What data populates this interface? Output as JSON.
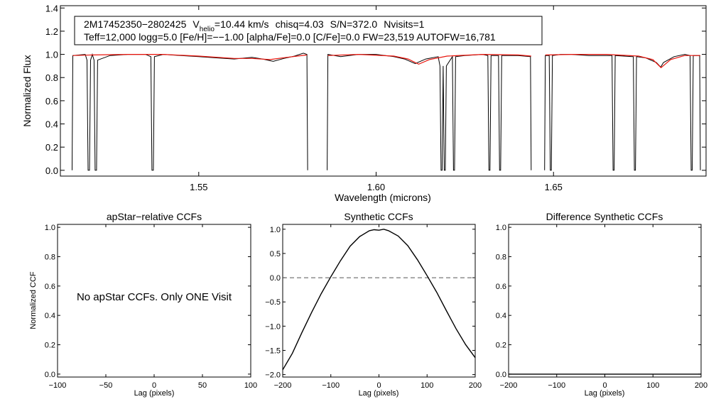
{
  "header": {
    "star_id": "2M17452350−2802425",
    "vhelio_prefix": "V",
    "vhelio_subscript": "helio",
    "vhelio_value": "=10.44 km/s",
    "chisq": "chisq=4.03",
    "snr": "S/N=372.0",
    "nvisits": "Nvisits=1",
    "params_line": "Teff=12,000 logg=5.0 [Fe/H]=−−1.00 [alpha/Fe]=0.0 [C/Fe]=0.0 FW=23,519 AUTOFW=16,781"
  },
  "colors": {
    "observed": "#000000",
    "model": "#e8140c",
    "dashed": "#555555"
  },
  "chart_data": [
    {
      "id": "spectrum",
      "type": "line",
      "title": "",
      "xlabel": "Wavelength (microns)",
      "ylabel": "Normalized Flux",
      "xlim": [
        1.511,
        1.693
      ],
      "ylim": [
        -0.05,
        1.42
      ],
      "xticks": [
        1.55,
        1.6,
        1.65
      ],
      "xtick_labels": [
        "1.55",
        "1.60",
        "1.65"
      ],
      "yticks": [
        0.0,
        0.2,
        0.4,
        0.6,
        0.8,
        1.0,
        1.2,
        1.4
      ],
      "ytick_labels": [
        "0.0",
        "0.2",
        "0.4",
        "0.6",
        "0.8",
        "1.0",
        "1.2",
        "1.4"
      ],
      "chips": [
        {
          "x": [
            1.5143,
            1.5145,
            1.518,
            1.5185,
            1.5188,
            1.5192,
            1.5195,
            1.52,
            1.5205,
            1.5208,
            1.5212,
            1.5215,
            1.525,
            1.53,
            1.535,
            1.5365,
            1.5368,
            1.5372,
            1.5375,
            1.54,
            1.545,
            1.55,
            1.555,
            1.56,
            1.565,
            1.568,
            1.571,
            1.574,
            1.577,
            1.5795,
            1.5805,
            1.5807
          ],
          "y": [
            0.0,
            0.99,
            1.0,
            0.95,
            0.0,
            0.0,
            0.95,
            1.0,
            0.95,
            0.0,
            0.0,
            0.95,
            0.99,
            1.0,
            1.0,
            0.98,
            0.0,
            0.0,
            0.98,
            1.0,
            0.99,
            0.98,
            0.97,
            0.96,
            0.975,
            0.96,
            0.94,
            0.965,
            0.985,
            1.01,
            1.0,
            0.0
          ]
        },
        {
          "x": [
            1.5862,
            1.5864,
            1.59,
            1.595,
            1.6,
            1.605,
            1.608,
            1.611,
            1.614,
            1.6175,
            1.618,
            1.6183,
            1.6186,
            1.6189,
            1.6192,
            1.6195,
            1.6198,
            1.6215,
            1.6218,
            1.6221,
            1.6224,
            1.625,
            1.63,
            1.6315,
            1.6318,
            1.6321,
            1.6324,
            1.6345,
            1.6348,
            1.6351,
            1.6354,
            1.64,
            1.6435,
            1.6437
          ],
          "y": [
            0.0,
            1.0,
            0.98,
            1.0,
            1.0,
            0.98,
            0.96,
            0.92,
            0.96,
            0.98,
            0.9,
            0.0,
            0.0,
            0.9,
            0.0,
            0.0,
            0.9,
            0.98,
            0.0,
            0.0,
            0.98,
            0.99,
            1.0,
            0.99,
            0.0,
            0.0,
            0.99,
            0.99,
            0.0,
            0.0,
            0.99,
            0.99,
            0.98,
            0.0
          ]
        },
        {
          "x": [
            1.6475,
            1.6477,
            1.6488,
            1.6491,
            1.6494,
            1.6497,
            1.652,
            1.655,
            1.66,
            1.665,
            1.6665,
            1.6668,
            1.6671,
            1.6674,
            1.6725,
            1.6728,
            1.6731,
            1.6734,
            1.676,
            1.679,
            1.6802,
            1.681,
            1.684,
            1.687,
            1.6885,
            1.6888,
            1.6891,
            1.6894,
            1.6912,
            1.6914
          ],
          "y": [
            0.0,
            0.99,
            0.99,
            0.0,
            0.0,
            0.99,
            1.0,
            1.0,
            0.99,
            0.99,
            0.99,
            0.0,
            0.0,
            0.99,
            0.98,
            0.0,
            0.0,
            0.98,
            0.97,
            0.93,
            0.89,
            0.93,
            0.98,
            1.0,
            0.99,
            0.0,
            0.0,
            0.99,
            0.99,
            0.0
          ]
        }
      ],
      "model_chips": [
        {
          "x": [
            1.5145,
            1.52,
            1.53,
            1.54,
            1.55,
            1.56,
            1.565,
            1.57,
            1.575,
            1.5805
          ],
          "y": [
            0.99,
            0.995,
            1.0,
            1.0,
            0.985,
            0.965,
            0.965,
            0.955,
            0.975,
            0.995
          ]
        },
        {
          "x": [
            1.5864,
            1.595,
            1.605,
            1.609,
            1.612,
            1.615,
            1.62,
            1.63,
            1.64,
            1.6437
          ],
          "y": [
            0.99,
            1.0,
            0.985,
            0.96,
            0.915,
            0.955,
            0.985,
            1.0,
            0.995,
            0.985
          ]
        },
        {
          "x": [
            1.6477,
            1.655,
            1.665,
            1.674,
            1.678,
            1.6803,
            1.683,
            1.687,
            1.6914
          ],
          "y": [
            0.995,
            1.0,
            1.0,
            0.985,
            0.955,
            0.885,
            0.955,
            0.99,
            0.99
          ]
        }
      ]
    },
    {
      "id": "apstar-ccf",
      "type": "line",
      "title": "apStar−relative CCFs",
      "xlabel": "Lag (pixels)",
      "ylabel": "Normalized CCF",
      "xlim": [
        -100,
        100
      ],
      "ylim": [
        -0.02,
        1.02
      ],
      "xticks": [
        -100,
        -50,
        0,
        50,
        100
      ],
      "xtick_labels": [
        "−100",
        "−50",
        "0",
        "50",
        "100"
      ],
      "yticks": [
        0.0,
        0.2,
        0.4,
        0.6,
        0.8,
        1.0
      ],
      "ytick_labels": [
        "0.0",
        "0.2",
        "0.4",
        "0.6",
        "0.8",
        "1.0"
      ],
      "annotation": "No apStar CCFs.  Only ONE Visit",
      "series": []
    },
    {
      "id": "synthetic-ccf",
      "type": "line",
      "title": "Synthetic CCFs",
      "xlabel": "Lag (pixels)",
      "ylabel": "",
      "xlim": [
        -200,
        200
      ],
      "ylim": [
        -2.05,
        1.1
      ],
      "xticks": [
        -200,
        -100,
        0,
        100,
        200
      ],
      "xtick_labels": [
        "−200",
        "−100",
        "0",
        "100",
        "200"
      ],
      "yticks": [
        -2.0,
        -1.5,
        -1.0,
        -0.5,
        0.0,
        0.5,
        1.0
      ],
      "ytick_labels": [
        "−2.0",
        "−1.5",
        "−1.0",
        "−0.5",
        "0.0",
        "0.5",
        "1.0"
      ],
      "hline": 0.0,
      "series": [
        {
          "name": "Synthetic CCF",
          "x": [
            -200,
            -180,
            -160,
            -140,
            -120,
            -100,
            -80,
            -60,
            -40,
            -20,
            -10,
            0,
            10,
            20,
            40,
            60,
            80,
            100,
            120,
            140,
            160,
            180,
            200
          ],
          "y": [
            -1.9,
            -1.56,
            -1.13,
            -0.72,
            -0.33,
            0.02,
            0.35,
            0.65,
            0.85,
            0.97,
            0.99,
            0.98,
            1.0,
            0.97,
            0.86,
            0.66,
            0.37,
            0.04,
            -0.3,
            -0.68,
            -1.05,
            -1.38,
            -1.65
          ]
        }
      ]
    },
    {
      "id": "difference-ccf",
      "type": "line",
      "title": "Difference Synthetic CCFs",
      "xlabel": "Lag (pixels)",
      "ylabel": "",
      "xlim": [
        -200,
        200
      ],
      "ylim": [
        -0.02,
        1.02
      ],
      "xticks": [
        -200,
        -100,
        0,
        100,
        200
      ],
      "xtick_labels": [
        "−200",
        "−100",
        "0",
        "100",
        "200"
      ],
      "yticks": [
        0.0,
        0.2,
        0.4,
        0.6,
        0.8,
        1.0
      ],
      "ytick_labels": [
        "0.0",
        "0.2",
        "0.4",
        "0.6",
        "0.8",
        "1.0"
      ],
      "series": [
        {
          "name": "Difference CCF",
          "x": [
            -200,
            200
          ],
          "y": [
            0.0,
            0.0
          ]
        }
      ]
    }
  ]
}
